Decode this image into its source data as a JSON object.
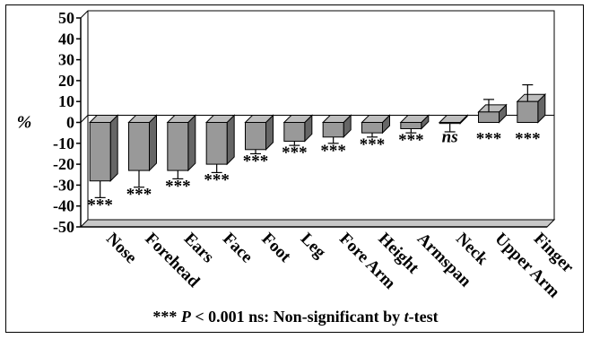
{
  "chart_data": {
    "type": "bar",
    "title": "",
    "xlabel": "",
    "ylabel": "%",
    "ylim": [
      -50,
      50
    ],
    "yticks": [
      50,
      40,
      30,
      20,
      10,
      0,
      -10,
      -20,
      -30,
      -40,
      -50
    ],
    "grid": false,
    "bar_color": "#999999",
    "categories": [
      "Nose",
      "Forehead",
      "Ears",
      "Face",
      "Foot",
      "Leg",
      "Fore Arm",
      "Height",
      "Armspan",
      "Neck",
      "Upper Arm",
      "Finger"
    ],
    "values": [
      -28,
      -23,
      -23,
      -20,
      -13,
      -9,
      -7,
      -5,
      -3,
      -0.5,
      5,
      10
    ],
    "error": [
      8,
      8,
      4,
      4,
      2,
      2,
      3,
      2,
      2,
      4,
      6,
      8
    ],
    "significance": [
      "***",
      "***",
      "***",
      "***",
      "***",
      "***",
      "***",
      "***",
      "***",
      "ns",
      "***",
      "***"
    ]
  },
  "footnote": {
    "stars": "***",
    "p_symbol": "P",
    "p_text": "< 0.001 ns: Non-significant by",
    "test_name": "t",
    "test_suffix": "-test"
  }
}
